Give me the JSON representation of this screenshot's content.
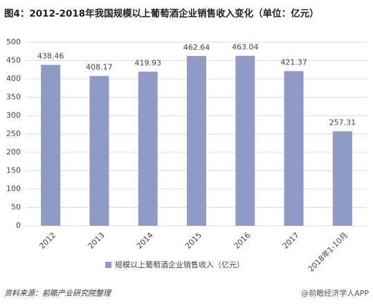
{
  "chart_data": {
    "type": "bar",
    "title": "图4：2012-2018年我国规模以上葡萄酒企业销售收入变化（单位：亿元）",
    "categories": [
      "2012",
      "2013",
      "2014",
      "2015",
      "2016",
      "2017",
      "2018年1-10月"
    ],
    "series": [
      {
        "name": "规模以上葡萄酒企业销售收入（亿元）",
        "color": "#8e9bc7",
        "values": [
          438.46,
          408.17,
          419.93,
          462.64,
          463.04,
          421.37,
          257.31
        ]
      }
    ],
    "ylim": [
      0,
      500
    ],
    "yticks": [
      0,
      50,
      100,
      150,
      200,
      250,
      300,
      350,
      400,
      450,
      500
    ],
    "grid": true,
    "legend": "bottom",
    "source": "资料来源：前瞻产业研究院整理",
    "watermark": "@前瞻经济学人APP"
  }
}
